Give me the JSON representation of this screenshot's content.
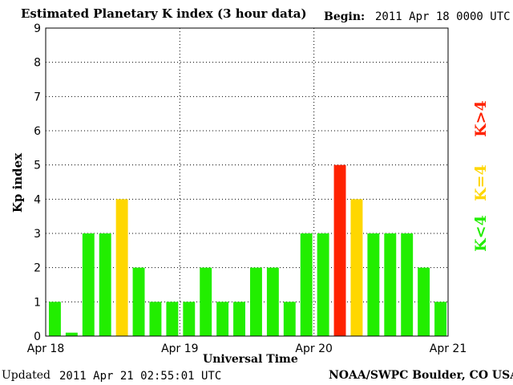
{
  "header": {
    "title": "Estimated Planetary K index (3 hour data)",
    "begin_label": "Begin:",
    "begin_value": "2011 Apr 18 0000 UTC"
  },
  "footer": {
    "updated_label": "Updated",
    "updated_value": "2011 Apr 21 02:55:01 UTC",
    "credit": "NOAA/SWPC Boulder, CO USA"
  },
  "legend": {
    "high": {
      "label": "K>4",
      "color": "#ff2200"
    },
    "mid": {
      "label": "K=4",
      "color": "#ffd700"
    },
    "low": {
      "label": "K<4",
      "color": "#22ee00"
    }
  },
  "chart_data": {
    "type": "bar",
    "title": "Estimated Planetary K index (3 hour data)",
    "xlabel": "Universal Time",
    "ylabel": "Kp index",
    "ylim": [
      0,
      9
    ],
    "yticks": [
      0,
      1,
      2,
      3,
      4,
      5,
      6,
      7,
      8,
      9
    ],
    "xlim": [
      "2011-04-18 00:00",
      "2011-04-21 00:00"
    ],
    "xticks": [
      "Apr 18",
      "Apr 19",
      "Apr 20",
      "Apr 21"
    ],
    "grid": true,
    "interval_hours": 3,
    "values": [
      1,
      0.1,
      3,
      3,
      4,
      2,
      1,
      1,
      1,
      2,
      1,
      1,
      2,
      2,
      1,
      3,
      3,
      5,
      4,
      3,
      3,
      3,
      2,
      1
    ],
    "colors": {
      "below_4": "#22ee00",
      "equal_4": "#ffd700",
      "above_4": "#ff2200"
    }
  }
}
